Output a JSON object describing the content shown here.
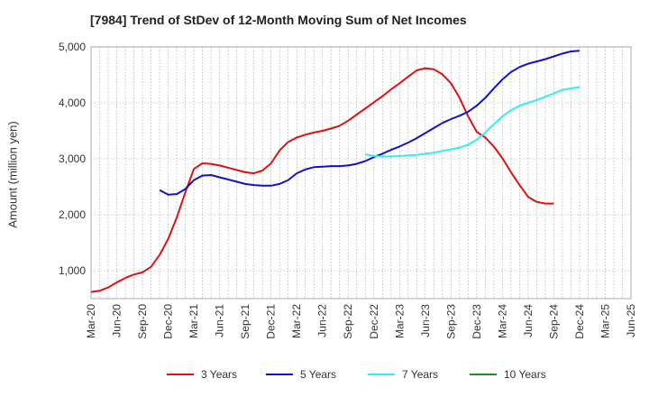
{
  "chart_data": {
    "type": "line",
    "title": "[7984]  Trend of StDev of 12-Month Moving Sum of Net Incomes",
    "ylabel": "Amount (million yen)",
    "xlabel": "",
    "ylim": [
      500,
      5000
    ],
    "yticks": [
      1000,
      2000,
      3000,
      4000,
      5000
    ],
    "ytick_labels": [
      "1,000",
      "2,000",
      "3,000",
      "4,000",
      "5,000"
    ],
    "xtick_labels": [
      "Mar-20",
      "Jun-20",
      "Sep-20",
      "Dec-20",
      "Mar-21",
      "Jun-21",
      "Sep-21",
      "Dec-21",
      "Mar-22",
      "Jun-22",
      "Sep-22",
      "Dec-22",
      "Mar-23",
      "Jun-23",
      "Sep-23",
      "Dec-23",
      "Mar-24",
      "Jun-24",
      "Sep-24",
      "Dec-24",
      "Mar-25",
      "Jun-25"
    ],
    "x_start": "Mar-20",
    "grid": true,
    "legend_position": "bottom",
    "series": [
      {
        "name": "3 Years",
        "color": "#dd1111",
        "start": "Mar-20",
        "values": [
          620,
          640,
          700,
          790,
          870,
          930,
          970,
          1070,
          1280,
          1570,
          1950,
          2400,
          2820,
          2920,
          2910,
          2880,
          2840,
          2800,
          2760,
          2740,
          2790,
          2920,
          3150,
          3300,
          3380,
          3430,
          3470,
          3500,
          3540,
          3590,
          3680,
          3790,
          3900,
          4010,
          4120,
          4240,
          4350,
          4470,
          4580,
          4620,
          4600,
          4510,
          4350,
          4090,
          3760,
          3480,
          3380,
          3220,
          3010,
          2760,
          2530,
          2320,
          2230,
          2200,
          2200
        ]
      },
      {
        "name": "5 Years",
        "color": "#1111cc",
        "start": "Nov-20",
        "values": [
          2440,
          2360,
          2370,
          2460,
          2620,
          2700,
          2710,
          2670,
          2630,
          2590,
          2550,
          2530,
          2520,
          2520,
          2550,
          2620,
          2740,
          2810,
          2850,
          2860,
          2870,
          2870,
          2880,
          2910,
          2960,
          3030,
          3090,
          3160,
          3220,
          3290,
          3370,
          3460,
          3550,
          3640,
          3710,
          3770,
          3840,
          3950,
          4090,
          4260,
          4420,
          4550,
          4640,
          4700,
          4740,
          4780,
          4830,
          4880,
          4920,
          4930
        ]
      },
      {
        "name": "7 Years",
        "color": "#33eeee",
        "start": "Nov-22",
        "values": [
          3080,
          3050,
          3040,
          3040,
          3050,
          3060,
          3070,
          3090,
          3110,
          3140,
          3170,
          3200,
          3250,
          3340,
          3470,
          3620,
          3760,
          3870,
          3950,
          4000,
          4050,
          4110,
          4170,
          4230,
          4260,
          4280
        ]
      },
      {
        "name": "10 Years",
        "color": "#228822",
        "start": "",
        "values": []
      }
    ]
  }
}
